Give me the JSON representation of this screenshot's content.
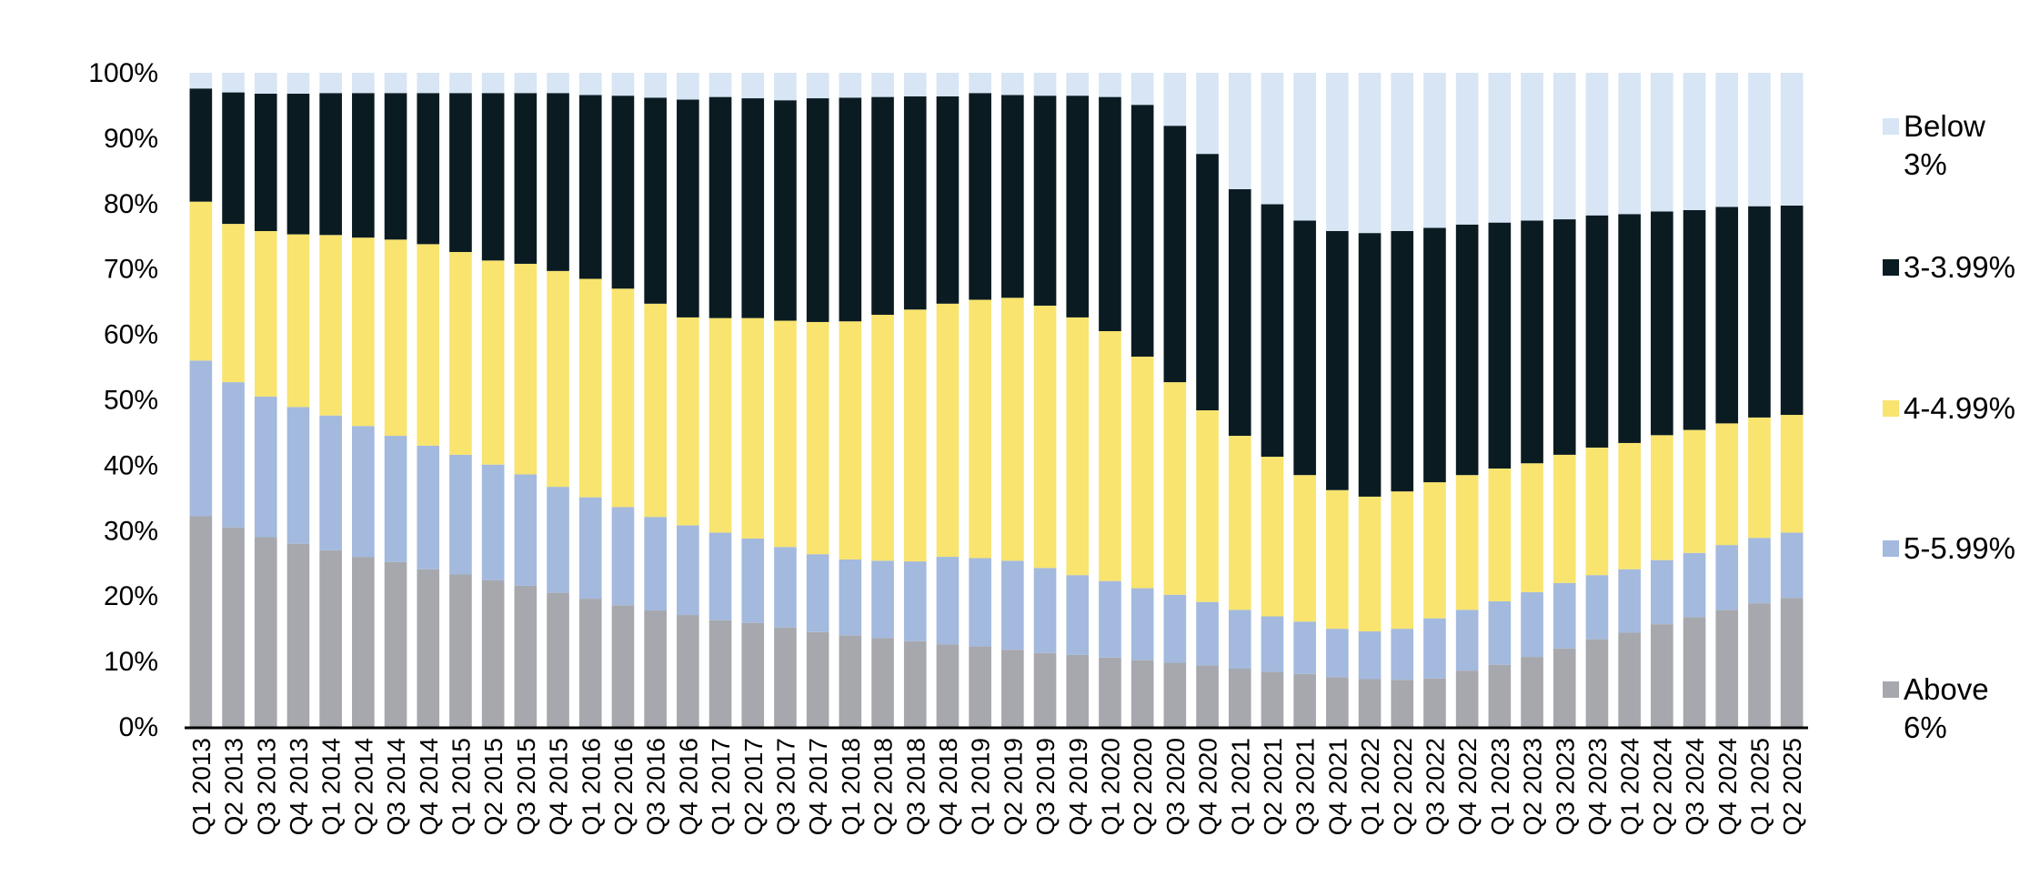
{
  "chart_data": {
    "type": "bar",
    "stacked": true,
    "percent_scale": true,
    "title": "",
    "xlabel": "",
    "ylabel": "",
    "ylim": [
      0,
      100
    ],
    "y_ticks": [
      "0%",
      "10%",
      "20%",
      "30%",
      "40%",
      "50%",
      "60%",
      "70%",
      "80%",
      "90%",
      "100%"
    ],
    "grid": false,
    "legend_position": "right",
    "categories": [
      "Q1 2013",
      "Q2 2013",
      "Q3 2013",
      "Q4 2013",
      "Q1 2014",
      "Q2 2014",
      "Q3 2014",
      "Q4 2014",
      "Q1 2015",
      "Q2 2015",
      "Q3 2015",
      "Q4 2015",
      "Q1 2016",
      "Q2 2016",
      "Q3 2016",
      "Q4 2016",
      "Q1 2017",
      "Q2 2017",
      "Q3 2017",
      "Q4 2017",
      "Q1 2018",
      "Q2 2018",
      "Q3 2018",
      "Q4 2018",
      "Q1 2019",
      "Q2 2019",
      "Q3 2019",
      "Q4 2019",
      "Q1 2020",
      "Q2 2020",
      "Q3 2020",
      "Q4 2020",
      "Q1 2021",
      "Q2 2021",
      "Q3 2021",
      "Q4 2021",
      "Q1 2022",
      "Q2 2022",
      "Q3 2022",
      "Q4 2022",
      "Q1 2023",
      "Q2 2023",
      "Q3 2023",
      "Q4 2023",
      "Q1 2024",
      "Q2 2024",
      "Q3 2024",
      "Q4 2024",
      "Q1 2025",
      "Q2 2025"
    ],
    "series": [
      {
        "name": "Above 6%",
        "color": "#a6a8ad",
        "values": [
          32.2,
          30.5,
          29.0,
          28.0,
          27.0,
          26.0,
          25.2,
          24.1,
          23.3,
          22.4,
          21.6,
          20.5,
          19.6,
          18.6,
          17.8,
          17.1,
          16.3,
          15.9,
          15.2,
          14.5,
          14.0,
          13.6,
          13.1,
          12.6,
          12.3,
          11.8,
          11.3,
          11.0,
          10.6,
          10.2,
          9.8,
          9.4,
          8.9,
          8.4,
          8.1,
          7.6,
          7.3,
          7.2,
          7.4,
          8.6,
          9.5,
          10.7,
          12.0,
          13.4,
          14.4,
          15.7,
          16.8,
          17.9,
          18.9,
          19.7
        ]
      },
      {
        "name": "5-5.99%",
        "color": "#a3b9de",
        "values": [
          23.8,
          22.2,
          21.5,
          20.9,
          20.6,
          20.0,
          19.3,
          18.9,
          18.3,
          17.7,
          17.0,
          16.2,
          15.5,
          15.0,
          14.3,
          13.7,
          13.4,
          12.9,
          12.3,
          11.9,
          11.6,
          11.8,
          12.2,
          13.4,
          13.5,
          13.6,
          13.0,
          12.2,
          11.7,
          11.0,
          10.4,
          9.7,
          9.0,
          8.5,
          8.0,
          7.4,
          7.3,
          7.8,
          9.2,
          9.3,
          9.7,
          9.9,
          10.0,
          9.8,
          9.7,
          9.8,
          9.8,
          9.9,
          10.0,
          10.0
        ]
      },
      {
        "name": "4-4.99%",
        "color": "#f8e46f",
        "values": [
          24.3,
          24.2,
          25.3,
          26.4,
          27.6,
          28.8,
          30.0,
          30.8,
          31.0,
          31.2,
          32.2,
          33.0,
          33.4,
          33.4,
          32.6,
          31.8,
          32.8,
          33.7,
          34.6,
          35.5,
          36.4,
          37.6,
          38.5,
          38.7,
          39.5,
          40.2,
          40.1,
          39.4,
          38.2,
          35.4,
          32.5,
          29.3,
          26.6,
          24.4,
          22.4,
          21.2,
          20.6,
          21.0,
          20.8,
          20.6,
          20.3,
          19.7,
          19.6,
          19.5,
          19.3,
          19.1,
          18.8,
          18.6,
          18.4,
          18.0
        ]
      },
      {
        "name": "3-3.99%",
        "color": "#0a1c22",
        "values": [
          17.3,
          20.1,
          21.0,
          21.5,
          21.7,
          22.1,
          22.4,
          23.1,
          24.3,
          25.6,
          26.1,
          27.2,
          28.1,
          29.5,
          31.5,
          33.3,
          33.8,
          33.6,
          33.7,
          34.2,
          34.2,
          33.3,
          32.6,
          31.7,
          31.6,
          31.0,
          32.1,
          33.9,
          35.8,
          38.5,
          39.2,
          39.2,
          37.7,
          38.6,
          38.9,
          39.6,
          40.3,
          39.8,
          38.9,
          38.3,
          37.6,
          37.1,
          36.0,
          35.5,
          35.0,
          34.2,
          33.6,
          33.1,
          32.3,
          32.0
        ]
      },
      {
        "name": "Below 3%",
        "color": "#d7e5f4",
        "values": [
          2.4,
          3.0,
          3.2,
          3.2,
          3.1,
          3.1,
          3.1,
          3.1,
          3.1,
          3.1,
          3.1,
          3.1,
          3.4,
          3.5,
          3.8,
          4.1,
          3.7,
          3.9,
          4.2,
          3.9,
          3.8,
          3.7,
          3.6,
          3.6,
          3.1,
          3.4,
          3.5,
          3.5,
          3.7,
          4.9,
          8.1,
          12.4,
          17.8,
          20.1,
          22.6,
          24.2,
          24.5,
          24.2,
          23.7,
          23.2,
          22.9,
          22.6,
          22.4,
          21.8,
          21.6,
          21.2,
          21.0,
          20.5,
          20.4,
          20.3
        ]
      }
    ],
    "legend": [
      {
        "lines": [
          "Below",
          "3%"
        ],
        "color": "#d7e5f4"
      },
      {
        "lines": [
          "3-3.99%"
        ],
        "color": "#0a1c22"
      },
      {
        "lines": [
          "4-4.99%"
        ],
        "color": "#f8e46f"
      },
      {
        "lines": [
          "5-5.99%"
        ],
        "color": "#a3b9de"
      },
      {
        "lines": [
          "Above",
          "6%"
        ],
        "color": "#a6a8ad"
      }
    ]
  }
}
